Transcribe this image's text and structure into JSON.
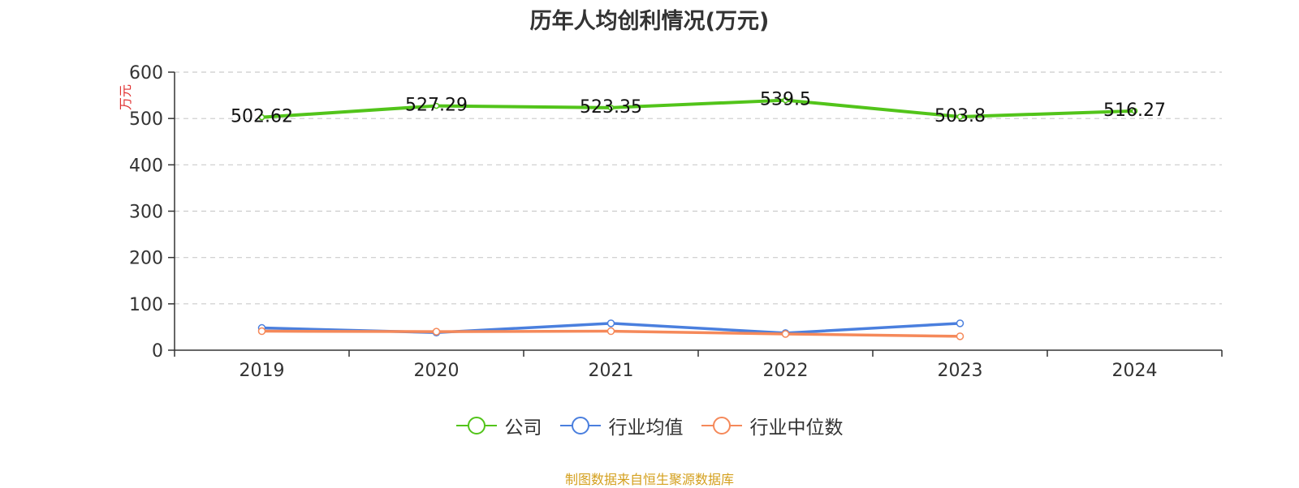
{
  "title": "历年人均创利情况(万元)",
  "source": "制图数据来自恒生聚源数据库",
  "chart_data": {
    "type": "line",
    "title": "历年人均创利情况(万元)",
    "ylabel": "万元",
    "categories": [
      "2019",
      "2020",
      "2021",
      "2022",
      "2023",
      "2024"
    ],
    "ylim": [
      0,
      600
    ],
    "yticks": [
      0,
      100,
      200,
      300,
      400,
      500,
      600
    ],
    "grid": true,
    "legend_position": "bottom",
    "series": [
      {
        "name": "公司",
        "color": "#52c41a",
        "values": [
          502.62,
          527.29,
          523.35,
          539.5,
          503.8,
          516.27
        ],
        "labels": [
          "502.62",
          "527.29",
          "523.35",
          "539.5",
          "503.8",
          "516.27"
        ],
        "show_labels": true
      },
      {
        "name": "行业均值",
        "color": "#4a7fde",
        "values": [
          48,
          38,
          58,
          37,
          58,
          null
        ],
        "show_labels": false
      },
      {
        "name": "行业中位数",
        "color": "#f5895a",
        "values": [
          41,
          40,
          41,
          35,
          30,
          null
        ],
        "show_labels": false
      }
    ]
  }
}
